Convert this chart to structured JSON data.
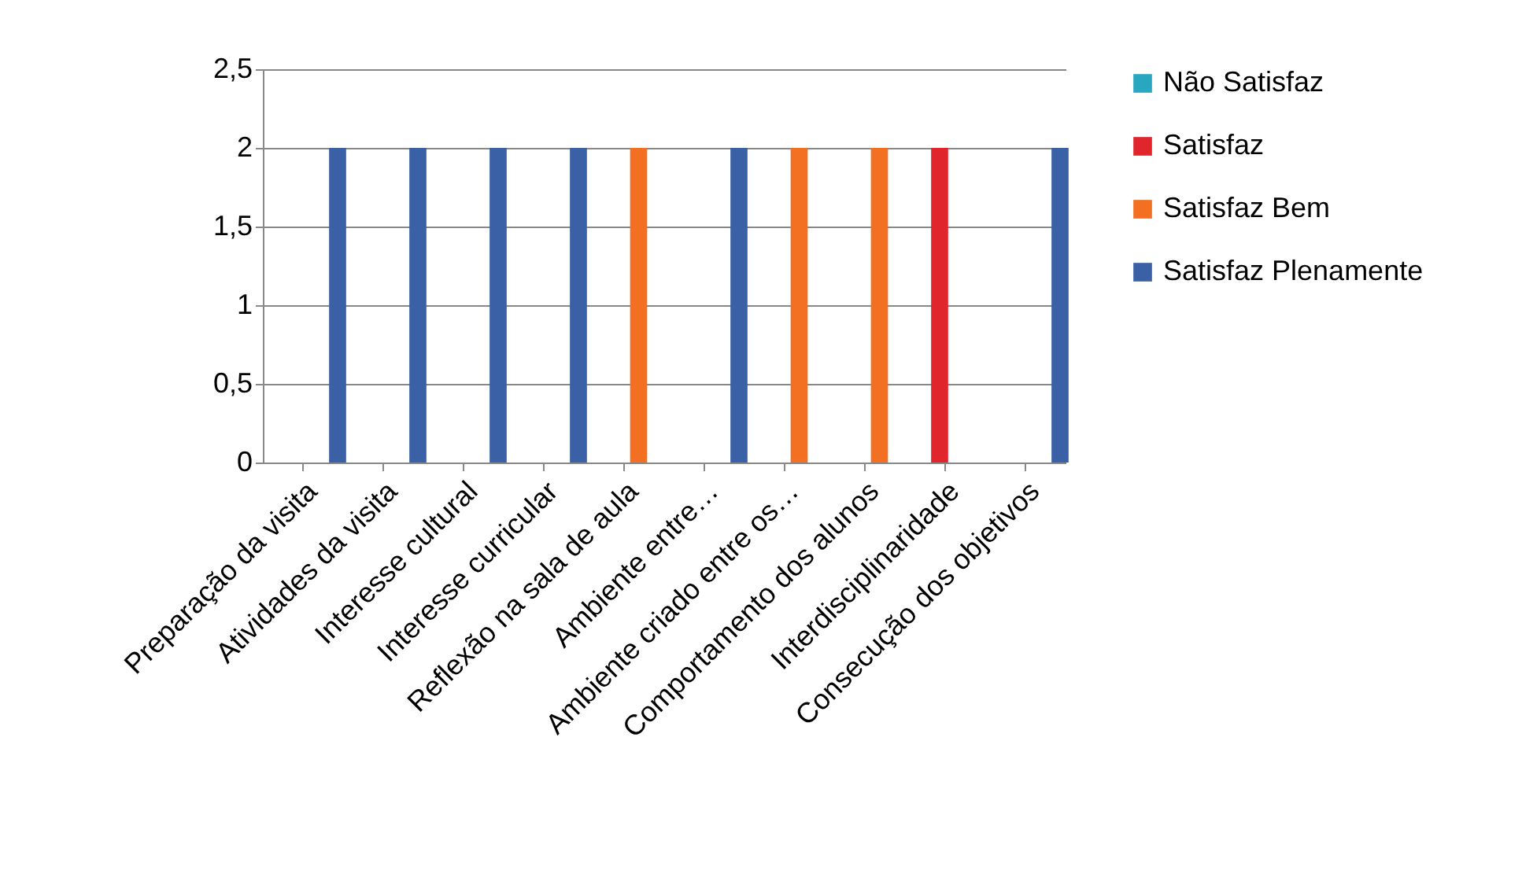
{
  "chart_data": {
    "type": "bar",
    "categories": [
      "Preparação da visita",
      "Atividades da visita",
      "Interesse cultural",
      "Interesse curricular",
      "Reflexão na sala de aula",
      "Ambiente entre…",
      "Ambiente criado entre os…",
      "Comportamento dos alunos",
      "Interdisciplinaridade",
      "Consecução dos objetivos"
    ],
    "series": [
      {
        "name": "Não Satisfaz",
        "color": "#2aa7c0",
        "values": [
          null,
          null,
          null,
          null,
          null,
          null,
          null,
          null,
          null,
          null
        ]
      },
      {
        "name": "Satisfaz",
        "color": "#e0262c",
        "values": [
          null,
          null,
          null,
          null,
          null,
          null,
          null,
          null,
          2,
          null
        ]
      },
      {
        "name": "Satisfaz Bem",
        "color": "#f36f21",
        "values": [
          null,
          null,
          null,
          null,
          2,
          null,
          2,
          2,
          null,
          null
        ]
      },
      {
        "name": "Satisfaz Plenamente",
        "color": "#3a61a6",
        "values": [
          2,
          2,
          2,
          2,
          null,
          2,
          null,
          null,
          null,
          2
        ]
      }
    ],
    "ylim": [
      0,
      2.5
    ],
    "yticks": [
      0,
      {
        "value": 0.5,
        "label": "0,5"
      },
      1,
      {
        "value": 1.5,
        "label": "1,5"
      },
      2,
      {
        "value": 2.5,
        "label": "2,5"
      }
    ],
    "grid": "y",
    "legend": "right"
  }
}
